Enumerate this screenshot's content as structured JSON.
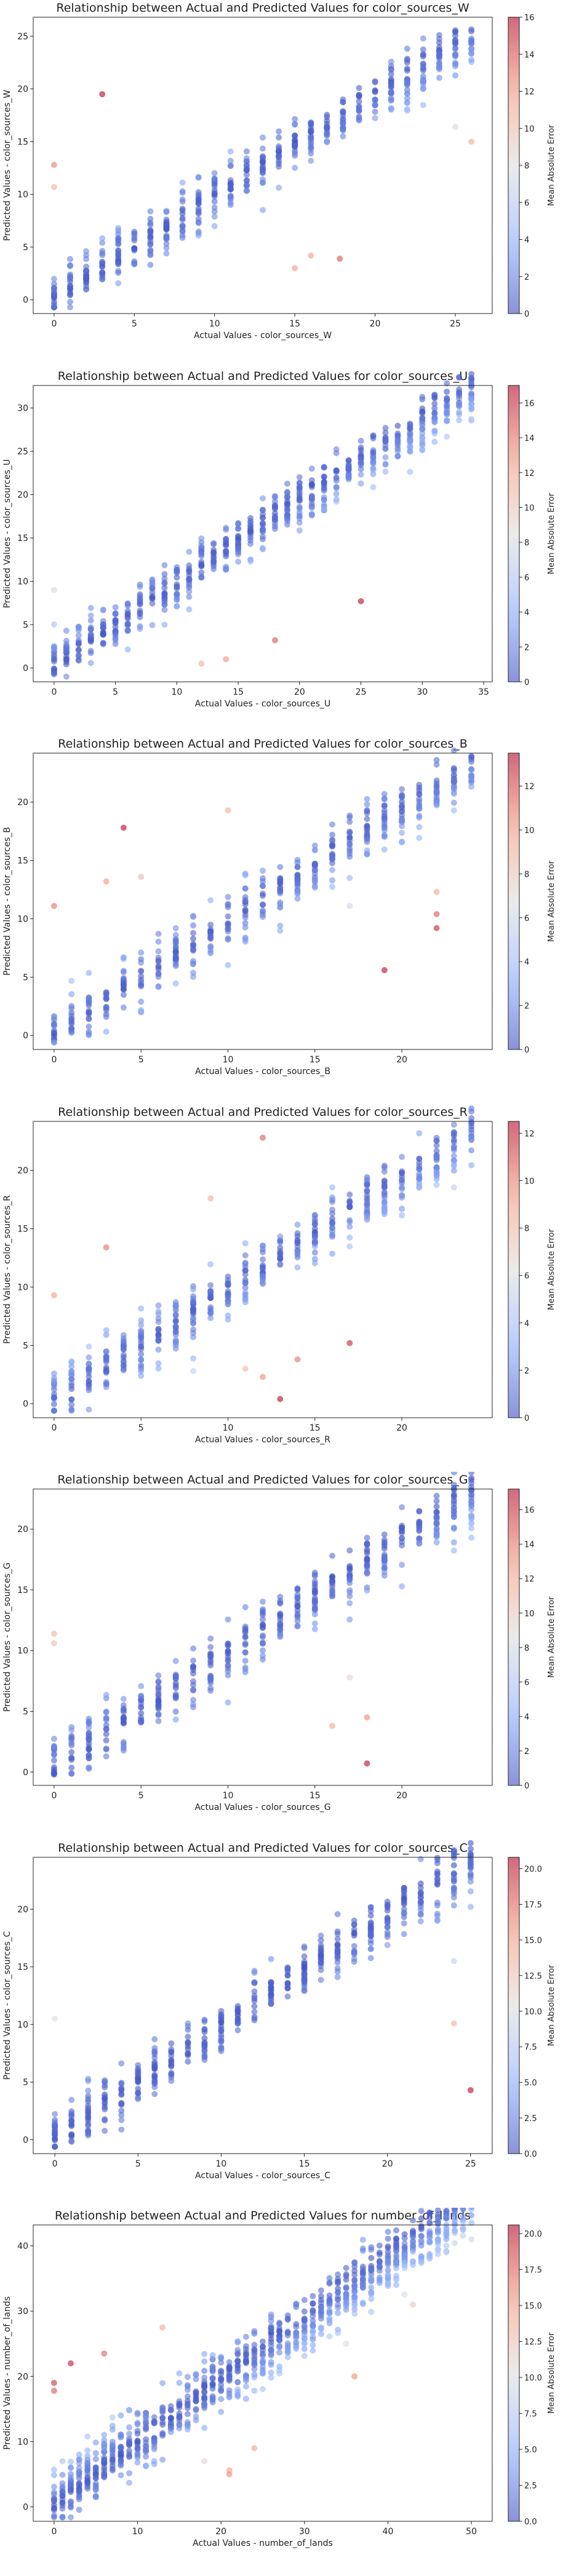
{
  "chart_data": [
    {
      "type": "scatter",
      "title": "Relationship between Actual and Predicted Values for color_sources_W",
      "xlabel": "Actual Values - color_sources_W",
      "ylabel": "Predicted Values - color_sources_W",
      "xlim": [
        -1.3,
        27.3
      ],
      "ylim": [
        -1.3,
        26.8
      ],
      "xticks": [
        0,
        5,
        10,
        15,
        20,
        25
      ],
      "yticks": [
        0,
        5,
        10,
        15,
        20,
        25
      ],
      "colorbar": {
        "label": "Mean Absolute Error",
        "range": [
          0,
          16
        ],
        "ticks": [
          0,
          2,
          4,
          6,
          8,
          10,
          12,
          14,
          16
        ]
      },
      "xmax": 26,
      "slope": 0.93,
      "intercept": 0.5,
      "scale": 1.2,
      "outliers": [
        [
          3,
          19.5
        ],
        [
          0,
          12.8
        ],
        [
          0,
          10.7
        ],
        [
          26,
          15
        ],
        [
          25,
          16.4
        ],
        [
          15,
          3
        ],
        [
          17.8,
          3.9
        ],
        [
          16,
          4.2
        ]
      ]
    },
    {
      "type": "scatter",
      "title": "Relationship between Actual and Predicted Values for color_sources_U",
      "xlabel": "Actual Values - color_sources_U",
      "ylabel": "Predicted Values - color_sources_U",
      "xlim": [
        -1.7,
        35.7
      ],
      "ylim": [
        -1.6,
        32.6
      ],
      "xticks": [
        0,
        5,
        10,
        15,
        20,
        25,
        30,
        35
      ],
      "yticks": [
        0,
        5,
        10,
        15,
        20,
        25,
        30
      ],
      "colorbar": {
        "label": "Mean Absolute Error",
        "range": [
          0,
          17
        ],
        "ticks": [
          0,
          2,
          4,
          6,
          8,
          10,
          12,
          14,
          16
        ]
      },
      "xmax": 34,
      "slope": 0.92,
      "intercept": 0.6,
      "scale": 1.4,
      "outliers": [
        [
          25,
          7.7
        ],
        [
          18,
          3.2
        ],
        [
          30,
          31
        ],
        [
          34,
          30.5
        ],
        [
          33,
          28.6
        ],
        [
          12,
          0.5
        ],
        [
          14,
          1
        ],
        [
          0,
          9
        ]
      ]
    },
    {
      "type": "scatter",
      "title": "Relationship between Actual and Predicted Values for color_sources_B",
      "xlabel": "Actual Values - color_sources_B",
      "ylabel": "Predicted Values - color_sources_B",
      "xlim": [
        -1.2,
        25.2
      ],
      "ylim": [
        -1.2,
        24.2
      ],
      "xticks": [
        0,
        5,
        10,
        15,
        20
      ],
      "yticks": [
        0,
        5,
        10,
        15,
        20
      ],
      "colorbar": {
        "label": "Mean Absolute Error",
        "range": [
          0,
          13.5
        ],
        "ticks": [
          0,
          2,
          4,
          6,
          8,
          10,
          12
        ]
      },
      "xmax": 24,
      "slope": 0.93,
      "intercept": 0.5,
      "scale": 1.2,
      "outliers": [
        [
          4,
          17.8
        ],
        [
          19,
          5.6
        ],
        [
          0,
          11.1
        ],
        [
          3,
          13.2
        ],
        [
          5,
          13.6
        ],
        [
          22,
          10.4
        ],
        [
          22,
          9.2
        ],
        [
          17,
          11.1
        ],
        [
          10,
          19.3
        ],
        [
          22,
          12.3
        ]
      ]
    },
    {
      "type": "scatter",
      "title": "Relationship between Actual and Predicted Values for color_sources_R",
      "xlabel": "Actual Values - color_sources_R",
      "ylabel": "Predicted Values - color_sources_R",
      "xlim": [
        -1.2,
        25.2
      ],
      "ylim": [
        -1.2,
        24.2
      ],
      "xticks": [
        0,
        5,
        10,
        15,
        20
      ],
      "yticks": [
        0,
        5,
        10,
        15,
        20
      ],
      "colorbar": {
        "label": "Mean Absolute Error",
        "range": [
          0,
          12.5
        ],
        "ticks": [
          0,
          2,
          4,
          6,
          8,
          10,
          12
        ]
      },
      "xmax": 24,
      "slope": 0.93,
      "intercept": 0.5,
      "scale": 1.2,
      "outliers": [
        [
          12,
          22.8
        ],
        [
          13,
          0.4
        ],
        [
          3,
          13.4
        ],
        [
          0,
          9.3
        ],
        [
          9,
          17.6
        ],
        [
          17,
          5.2
        ],
        [
          18,
          18.2
        ],
        [
          11,
          3
        ],
        [
          12,
          2.3
        ],
        [
          8,
          2.8
        ],
        [
          14,
          3.8
        ]
      ]
    },
    {
      "type": "scatter",
      "title": "Relationship between Actual and Predicted Values for color_sources_G",
      "xlabel": "Actual Values - color_sources_G",
      "ylabel": "Predicted Values - color_sources_G",
      "xlim": [
        -1.2,
        25.2
      ],
      "ylim": [
        -1.1,
        23.3
      ],
      "xticks": [
        0,
        5,
        10,
        15,
        20
      ],
      "yticks": [
        0,
        5,
        10,
        15,
        20
      ],
      "colorbar": {
        "label": "Mean Absolute Error",
        "range": [
          0,
          17.2
        ],
        "ticks": [
          0,
          2,
          4,
          6,
          8,
          10,
          12,
          14,
          16
        ]
      },
      "xmax": 24,
      "slope": 0.92,
      "intercept": 0.6,
      "scale": 1.2,
      "outliers": [
        [
          18,
          0.7
        ],
        [
          0,
          11.4
        ],
        [
          0,
          10.6
        ],
        [
          18,
          4.5
        ],
        [
          16,
          3.8
        ],
        [
          17,
          7.8
        ],
        [
          24,
          19.3
        ],
        [
          22,
          20.4
        ]
      ]
    },
    {
      "type": "scatter",
      "title": "Relationship between Actual and Predicted Values for color_sources_C",
      "xlabel": "Actual Values - color_sources_C",
      "ylabel": "Predicted Values - color_sources_C",
      "xlim": [
        -1.3,
        26.3
      ],
      "ylim": [
        -1.2,
        24.5
      ],
      "xticks": [
        0,
        5,
        10,
        15,
        20,
        25
      ],
      "yticks": [
        0,
        5,
        10,
        15,
        20
      ],
      "colorbar": {
        "label": "Mean Absolute Error",
        "range": [
          0,
          20.8
        ],
        "ticks": [
          0.0,
          2.5,
          5.0,
          7.5,
          10.0,
          12.5,
          15.0,
          17.5,
          20.0
        ]
      },
      "xmax": 25,
      "slope": 0.93,
      "intercept": 0.6,
      "scale": 1.1,
      "outliers": [
        [
          25,
          4.3
        ],
        [
          24,
          10.1
        ],
        [
          24,
          15.5
        ],
        [
          25,
          20.2
        ],
        [
          0,
          10.5
        ],
        [
          23,
          19
        ]
      ]
    },
    {
      "type": "scatter",
      "title": "Relationship between Actual and Predicted Values for number_of_lands",
      "xlabel": "Actual Values - number_of_lands",
      "ylabel": "Predicted Values - number_of_lands",
      "xlim": [
        -2.5,
        52.5
      ],
      "ylim": [
        -2.2,
        43.2
      ],
      "xticks": [
        0,
        10,
        20,
        30,
        40,
        50
      ],
      "yticks": [
        0,
        10,
        20,
        30,
        40
      ],
      "colorbar": {
        "label": "Mean Absolute Error",
        "range": [
          0,
          20.6
        ],
        "ticks": [
          0.0,
          2.5,
          5.0,
          7.5,
          10.0,
          12.5,
          15.0,
          17.5,
          20.0
        ]
      },
      "xmax": 50,
      "slope": 0.9,
      "intercept": 1.2,
      "scale": 2.2,
      "outliers": [
        [
          2,
          22
        ],
        [
          0,
          19
        ],
        [
          0,
          17.8
        ],
        [
          6,
          23.5
        ],
        [
          13,
          27.5
        ],
        [
          21,
          5.6
        ],
        [
          21,
          5
        ],
        [
          36,
          20
        ],
        [
          35,
          25
        ],
        [
          50,
          41
        ],
        [
          43,
          31
        ],
        [
          18,
          7
        ],
        [
          24,
          9
        ]
      ]
    }
  ]
}
